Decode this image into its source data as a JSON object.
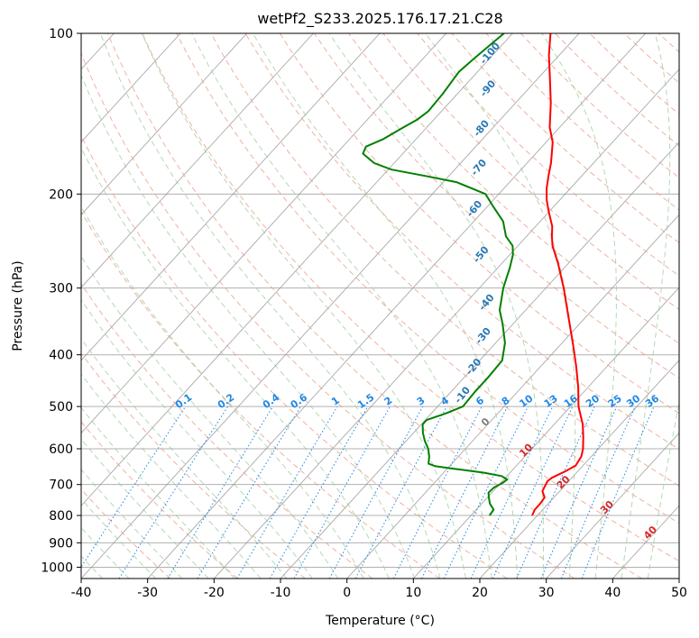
{
  "chart_data": {
    "type": "line",
    "title": "wetPf2_S233.2025.176.17.21.C28",
    "xlabel": "Temperature (°C)",
    "ylabel": "Pressure (hPa)",
    "xlim": [
      -40,
      50
    ],
    "ylim": [
      1050,
      100
    ],
    "y_scale": "log",
    "skew": true,
    "grid": true,
    "x_ticks": [
      -40,
      -30,
      -20,
      -10,
      0,
      10,
      20,
      30,
      40,
      50
    ],
    "y_ticks": [
      1000,
      900,
      800,
      700,
      600,
      500,
      400,
      300,
      200,
      100
    ],
    "colors": {
      "temperature": "#ff0000",
      "dewpoint": "#008000",
      "dry_adiabat": "#e8a08a",
      "moist_adiabat": "#96c896",
      "mixing_ratio": "#1e88e5",
      "isotherm": "#8c8c8c",
      "grid": "#b0b0b0"
    },
    "series": [
      {
        "role": "temperature",
        "points": [
          {
            "p": 800,
            "t": 19.2
          },
          {
            "p": 780,
            "t": 18.8
          },
          {
            "p": 760,
            "t": 18.8
          },
          {
            "p": 740,
            "t": 18.6
          },
          {
            "p": 720,
            "t": 17.4
          },
          {
            "p": 700,
            "t": 17.0
          },
          {
            "p": 690,
            "t": 16.8
          },
          {
            "p": 680,
            "t": 17.0
          },
          {
            "p": 660,
            "t": 18.2
          },
          {
            "p": 645,
            "t": 18.9
          },
          {
            "p": 620,
            "t": 18.5
          },
          {
            "p": 600,
            "t": 17.7
          },
          {
            "p": 570,
            "t": 16.1
          },
          {
            "p": 540,
            "t": 14.3
          },
          {
            "p": 500,
            "t": 11.2
          },
          {
            "p": 460,
            "t": 8.5
          },
          {
            "p": 420,
            "t": 5.3
          },
          {
            "p": 380,
            "t": 1.6
          },
          {
            "p": 340,
            "t": -2.6
          },
          {
            "p": 300,
            "t": -7.3
          },
          {
            "p": 270,
            "t": -11.5
          },
          {
            "p": 250,
            "t": -14.8
          },
          {
            "p": 240,
            "t": -16.2
          },
          {
            "p": 230,
            "t": -17.5
          },
          {
            "p": 215,
            "t": -20.2
          },
          {
            "p": 205,
            "t": -22.0
          },
          {
            "p": 195,
            "t": -23.6
          },
          {
            "p": 185,
            "t": -25.0
          },
          {
            "p": 175,
            "t": -26.4
          },
          {
            "p": 160,
            "t": -29.0
          },
          {
            "p": 150,
            "t": -31.5
          },
          {
            "p": 135,
            "t": -34.7
          },
          {
            "p": 120,
            "t": -38.6
          },
          {
            "p": 110,
            "t": -41.5
          },
          {
            "p": 100,
            "t": -44.3
          }
        ]
      },
      {
        "role": "dewpoint",
        "points": [
          {
            "p": 800,
            "t": 12.8
          },
          {
            "p": 780,
            "t": 12.6
          },
          {
            "p": 760,
            "t": 11.2
          },
          {
            "p": 740,
            "t": 10.2
          },
          {
            "p": 725,
            "t": 9.5
          },
          {
            "p": 710,
            "t": 9.6
          },
          {
            "p": 695,
            "t": 10.3
          },
          {
            "p": 685,
            "t": 10.5
          },
          {
            "p": 675,
            "t": 9.2
          },
          {
            "p": 665,
            "t": 6.0
          },
          {
            "p": 655,
            "t": 1.5
          },
          {
            "p": 647,
            "t": -2.1
          },
          {
            "p": 640,
            "t": -3.5
          },
          {
            "p": 620,
            "t": -4.4
          },
          {
            "p": 600,
            "t": -5.6
          },
          {
            "p": 580,
            "t": -7.2
          },
          {
            "p": 560,
            "t": -8.6
          },
          {
            "p": 540,
            "t": -9.8
          },
          {
            "p": 530,
            "t": -9.8
          },
          {
            "p": 515,
            "t": -7.8
          },
          {
            "p": 500,
            "t": -6.2
          },
          {
            "p": 470,
            "t": -6.4
          },
          {
            "p": 440,
            "t": -6.4
          },
          {
            "p": 410,
            "t": -6.6
          },
          {
            "p": 380,
            "t": -8.6
          },
          {
            "p": 350,
            "t": -11.6
          },
          {
            "p": 330,
            "t": -13.9
          },
          {
            "p": 300,
            "t": -16.4
          },
          {
            "p": 275,
            "t": -18.2
          },
          {
            "p": 260,
            "t": -19.5
          },
          {
            "p": 250,
            "t": -20.8
          },
          {
            "p": 240,
            "t": -23.1
          },
          {
            "p": 225,
            "t": -25.6
          },
          {
            "p": 210,
            "t": -29.4
          },
          {
            "p": 200,
            "t": -32.0
          },
          {
            "p": 190,
            "t": -38.0
          },
          {
            "p": 185,
            "t": -43.5
          },
          {
            "p": 180,
            "t": -49.5
          },
          {
            "p": 175,
            "t": -53.0
          },
          {
            "p": 168,
            "t": -56.0
          },
          {
            "p": 163,
            "t": -56.5
          },
          {
            "p": 158,
            "t": -55.0
          },
          {
            "p": 150,
            "t": -53.5
          },
          {
            "p": 145,
            "t": -52.5
          },
          {
            "p": 140,
            "t": -52.0
          },
          {
            "p": 130,
            "t": -52.2
          },
          {
            "p": 122,
            "t": -52.6
          },
          {
            "p": 118,
            "t": -52.8
          },
          {
            "p": 112,
            "t": -52.4
          },
          {
            "p": 105,
            "t": -51.8
          },
          {
            "p": 100,
            "t": -51.3
          }
        ]
      }
    ],
    "dry_adiabat_labels": [
      0,
      10,
      20,
      30,
      40
    ],
    "moist_adiabat_labels": [
      -100,
      -90,
      -80,
      -70,
      -60,
      -50,
      -40,
      -30,
      -20,
      -10
    ],
    "mixing_ratio_labels": [
      "0.1",
      "0.2",
      "0.4",
      "0.6",
      "1",
      "1.5",
      "2",
      "3",
      "4",
      "6",
      "8",
      "10",
      "13",
      "16",
      "20",
      "25",
      "30",
      "36"
    ]
  }
}
